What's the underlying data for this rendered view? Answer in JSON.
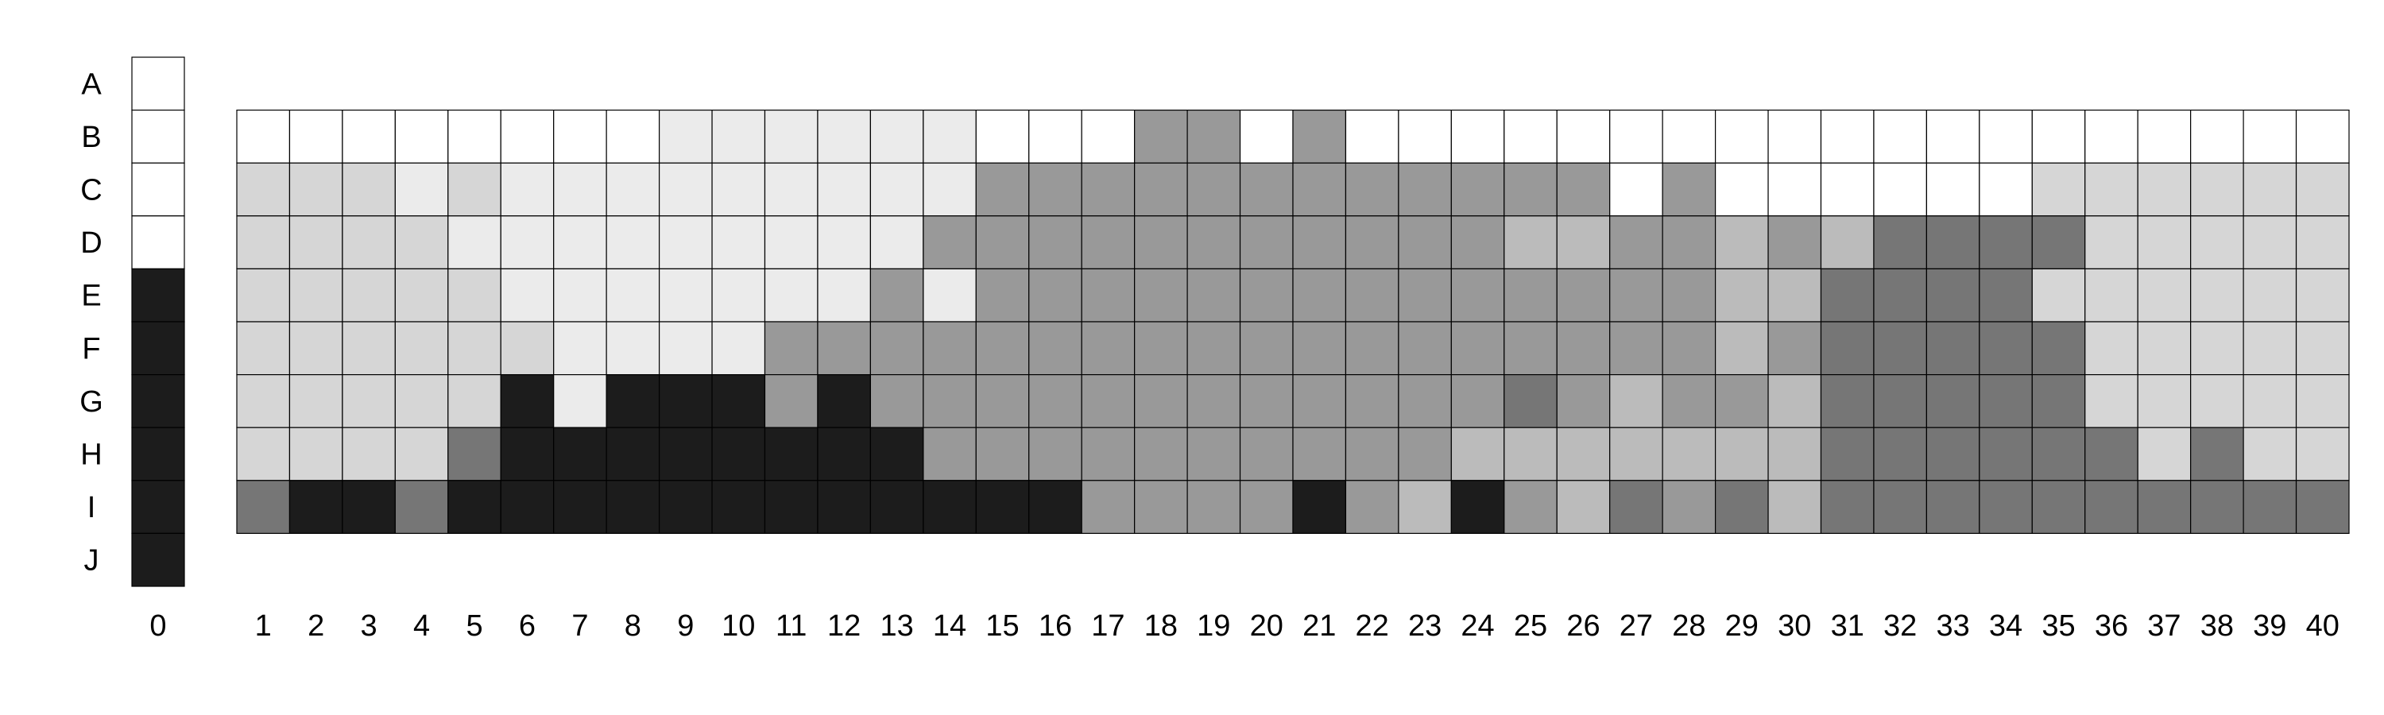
{
  "chart_data": {
    "type": "heatmap",
    "title": "",
    "xlabel": "",
    "ylabel": "",
    "row_labels": [
      "A",
      "B",
      "C",
      "D",
      "E",
      "F",
      "G",
      "H",
      "I",
      "J"
    ],
    "column_labels": [
      "0",
      "1",
      "2",
      "3",
      "4",
      "5",
      "6",
      "7",
      "8",
      "9",
      "10",
      "11",
      "12",
      "13",
      "14",
      "15",
      "16",
      "17",
      "18",
      "19",
      "20",
      "21",
      "22",
      "23",
      "24",
      "25",
      "26",
      "27",
      "28",
      "29",
      "30",
      "31",
      "32",
      "33",
      "34",
      "35",
      "36",
      "37",
      "38",
      "39",
      "40"
    ],
    "legend": {
      "0": "#ffffff",
      "1": "#ebebeb",
      "2": "#d6d6d6",
      "3": "#bbbbbb",
      "4": "#999999",
      "5": "#767676",
      "6": "#1c1c1c"
    },
    "column_0": [
      0,
      0,
      0,
      0,
      6,
      6,
      6,
      6,
      6,
      6
    ],
    "grid_rows": [
      "B",
      "C",
      "D",
      "E",
      "F",
      "G",
      "H",
      "I"
    ],
    "grid_values": [
      [
        0,
        0,
        0,
        0,
        0,
        0,
        0,
        0,
        1,
        1,
        1,
        1,
        1,
        1,
        0,
        0,
        0,
        4,
        4,
        0,
        4,
        0,
        0,
        0,
        0,
        0,
        0,
        0,
        0,
        0,
        0,
        0,
        0,
        0,
        0,
        0,
        0,
        0,
        0,
        0
      ],
      [
        2,
        2,
        2,
        1,
        2,
        1,
        1,
        1,
        1,
        1,
        1,
        1,
        1,
        1,
        4,
        4,
        4,
        4,
        4,
        4,
        4,
        4,
        4,
        4,
        4,
        4,
        0,
        4,
        0,
        0,
        0,
        0,
        0,
        0,
        2,
        2,
        2,
        2,
        2,
        2
      ],
      [
        2,
        2,
        2,
        2,
        1,
        1,
        1,
        1,
        1,
        1,
        1,
        1,
        1,
        4,
        4,
        4,
        4,
        4,
        4,
        4,
        4,
        4,
        4,
        4,
        3,
        3,
        4,
        4,
        3,
        4,
        3,
        5,
        5,
        5,
        5,
        2,
        2,
        2,
        2,
        2
      ],
      [
        2,
        2,
        2,
        2,
        2,
        1,
        1,
        1,
        1,
        1,
        1,
        1,
        4,
        1,
        4,
        4,
        4,
        4,
        4,
        4,
        4,
        4,
        4,
        4,
        4,
        4,
        4,
        4,
        3,
        3,
        5,
        5,
        5,
        5,
        2,
        2,
        2,
        2,
        2,
        2
      ],
      [
        2,
        2,
        2,
        2,
        2,
        2,
        1,
        1,
        1,
        1,
        4,
        4,
        4,
        4,
        4,
        4,
        4,
        4,
        4,
        4,
        4,
        4,
        4,
        4,
        4,
        4,
        4,
        4,
        3,
        4,
        5,
        5,
        5,
        5,
        5,
        2,
        2,
        2,
        2,
        2
      ],
      [
        2,
        2,
        2,
        2,
        2,
        6,
        1,
        6,
        6,
        6,
        4,
        6,
        4,
        4,
        4,
        4,
        4,
        4,
        4,
        4,
        4,
        4,
        4,
        4,
        5,
        4,
        3,
        4,
        4,
        3,
        5,
        5,
        5,
        5,
        5,
        2,
        2,
        2,
        2,
        2
      ],
      [
        2,
        2,
        2,
        2,
        5,
        6,
        6,
        6,
        6,
        6,
        6,
        6,
        6,
        4,
        4,
        4,
        4,
        4,
        4,
        4,
        4,
        4,
        4,
        3,
        3,
        3,
        3,
        3,
        3,
        3,
        5,
        5,
        5,
        5,
        5,
        5,
        2,
        5,
        2,
        2
      ],
      [
        5,
        6,
        6,
        5,
        6,
        6,
        6,
        6,
        6,
        6,
        6,
        6,
        6,
        6,
        6,
        6,
        4,
        4,
        4,
        4,
        6,
        4,
        3,
        6,
        4,
        3,
        5,
        4,
        5,
        3,
        5,
        5,
        5,
        5,
        5,
        5,
        5,
        5,
        5,
        5
      ]
    ]
  }
}
